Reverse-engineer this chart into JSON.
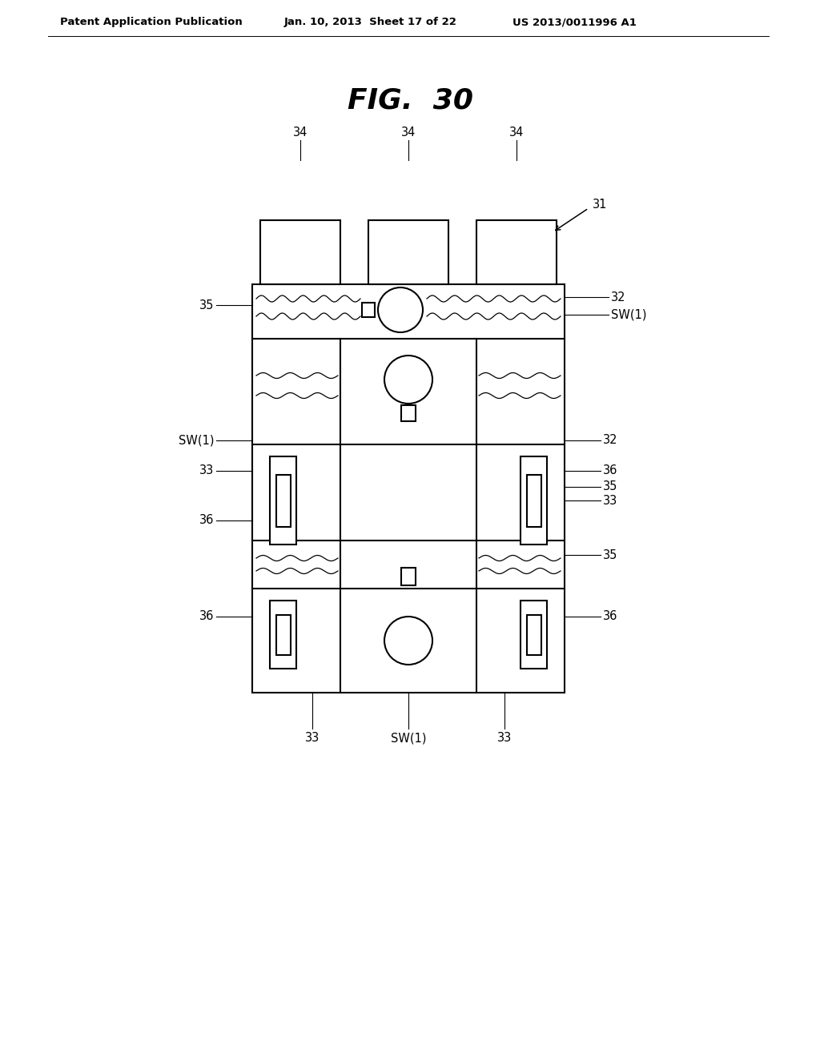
{
  "bg_color": "#ffffff",
  "header_left": "Patent Application Publication",
  "header_mid": "Jan. 10, 2013  Sheet 17 of 22",
  "header_right": "US 2013/0011996 A1",
  "line_color": "#000000",
  "text_color": "#000000",
  "lw": 1.5,
  "thin_lw": 0.9
}
